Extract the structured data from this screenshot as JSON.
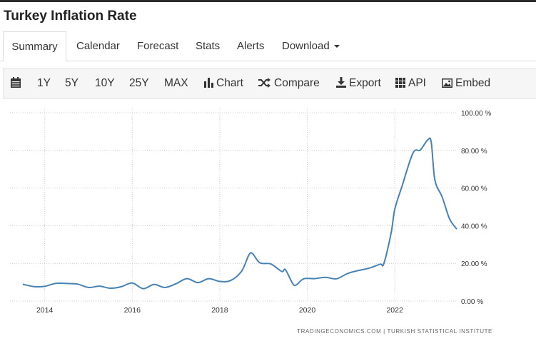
{
  "header": {
    "title": "Turkey Inflation Rate"
  },
  "tabs": [
    {
      "label": "Summary",
      "active": true
    },
    {
      "label": "Calendar"
    },
    {
      "label": "Forecast"
    },
    {
      "label": "Stats"
    },
    {
      "label": "Alerts"
    },
    {
      "label": "Download"
    }
  ],
  "toolbar": {
    "ranges": [
      "1Y",
      "5Y",
      "10Y",
      "25Y",
      "MAX"
    ],
    "chart_label": "Chart",
    "compare_label": "Compare",
    "export_label": "Export",
    "api_label": "API",
    "embed_label": "Embed"
  },
  "colors": {
    "line": "#4682b4",
    "grid": "#cccccc",
    "text": "#333333",
    "toolbar_bg": "#f6f6f6"
  },
  "icons": [
    "calendar-icon",
    "bar-chart-icon",
    "shuffle-icon",
    "download-icon",
    "grid-icon",
    "image-icon",
    "caret-down-icon"
  ],
  "chart_data": {
    "type": "line",
    "title": "",
    "xlabel": "",
    "ylabel": "",
    "ylim": [
      0,
      100
    ],
    "xlim": [
      "2013-07",
      "2023-06"
    ],
    "yticks": [
      0,
      20,
      40,
      60,
      80,
      100
    ],
    "ytick_labels": [
      "0.00 %",
      "20.00 %",
      "40.00 %",
      "60.00 %",
      "80.00 %",
      "100.00 %"
    ],
    "xticks": [
      "2014",
      "2016",
      "2018",
      "2020",
      "2022"
    ],
    "grid": true,
    "source_text": "TRADINGECONOMICS.COM  |  TURKISH STATISTICAL INSTITUTE",
    "series": [
      {
        "x": [
          "2013-07",
          "2013-10",
          "2014-01",
          "2014-04",
          "2014-07",
          "2014-10",
          "2015-01",
          "2015-04",
          "2015-07",
          "2015-10",
          "2016-01",
          "2016-04",
          "2016-07",
          "2016-10",
          "2017-01",
          "2017-04",
          "2017-07",
          "2017-10",
          "2018-01",
          "2018-04",
          "2018-07",
          "2018-09",
          "2018-10",
          "2018-12",
          "2019-03",
          "2019-06",
          "2019-07",
          "2019-09",
          "2019-10",
          "2019-12",
          "2020-03",
          "2020-06",
          "2020-09",
          "2020-12",
          "2021-03",
          "2021-06",
          "2021-09",
          "2021-10",
          "2021-12",
          "2022-01",
          "2022-03",
          "2022-06",
          "2022-08",
          "2022-10",
          "2022-11",
          "2022-12",
          "2023-02",
          "2023-04",
          "2023-06"
        ],
        "values": [
          8.9,
          7.7,
          7.8,
          9.4,
          9.3,
          9.0,
          7.2,
          7.9,
          6.8,
          7.6,
          9.6,
          6.6,
          8.8,
          7.2,
          9.2,
          11.9,
          9.8,
          11.9,
          10.4,
          10.9,
          15.9,
          24.5,
          25.2,
          20.3,
          19.7,
          15.7,
          16.7,
          9.3,
          8.6,
          11.8,
          11.9,
          12.6,
          11.8,
          14.6,
          16.2,
          17.5,
          19.6,
          19.9,
          36.1,
          48.7,
          61.1,
          78.6,
          80.2,
          85.5,
          84.4,
          64.3,
          55.2,
          43.7,
          38.2
        ]
      }
    ]
  }
}
